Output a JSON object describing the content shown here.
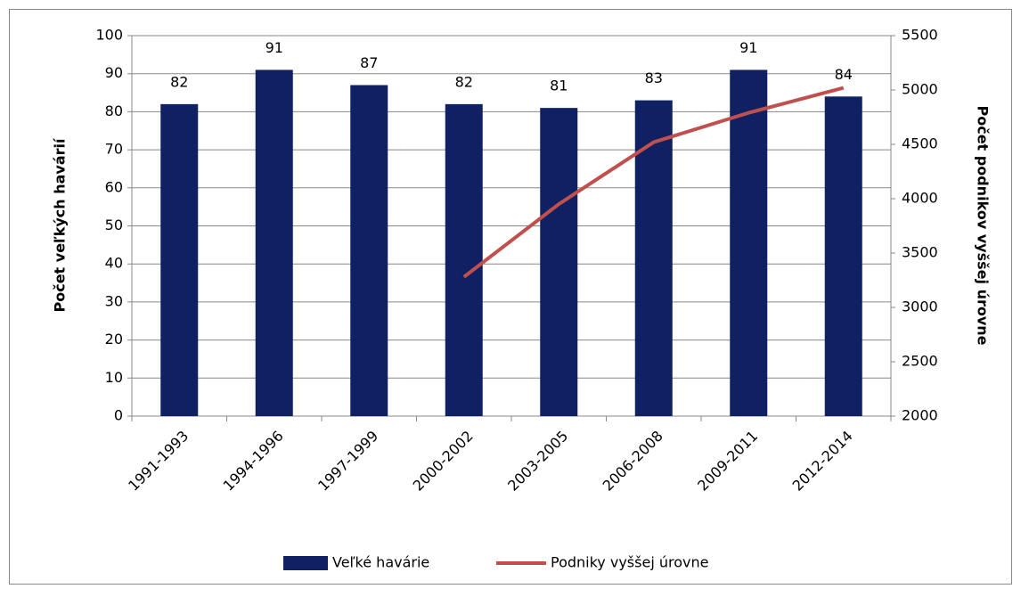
{
  "chart_data": {
    "type": "bar",
    "ylabel": "Počet veľkých havárií",
    "y2label": "Počet podnikov vyššej úrovne",
    "categories": [
      "1991-1993",
      "1994-1996",
      "1997-1999",
      "2000-2002",
      "2003-2005",
      "2006-2008",
      "2009-2011",
      "2012-2014"
    ],
    "series": [
      {
        "name": "Veľké havárie",
        "type": "bar",
        "color": "#0f2163",
        "values": [
          82,
          91,
          87,
          82,
          81,
          83,
          91,
          84
        ]
      },
      {
        "name": "Podniky vyššej úrovne",
        "type": "line",
        "axis": "y2",
        "color": "#c0504d",
        "values": [
          null,
          null,
          null,
          3280,
          3950,
          4520,
          4790,
          5020
        ]
      }
    ],
    "ylim": [
      0,
      100
    ],
    "yticks": [
      0,
      10,
      20,
      30,
      40,
      50,
      60,
      70,
      80,
      90,
      100
    ],
    "y2lim": [
      2000,
      5500
    ],
    "y2ticks": [
      2000,
      2500,
      3000,
      3500,
      4000,
      4500,
      5000,
      5500
    ],
    "grid": true,
    "legend": "bottom"
  }
}
